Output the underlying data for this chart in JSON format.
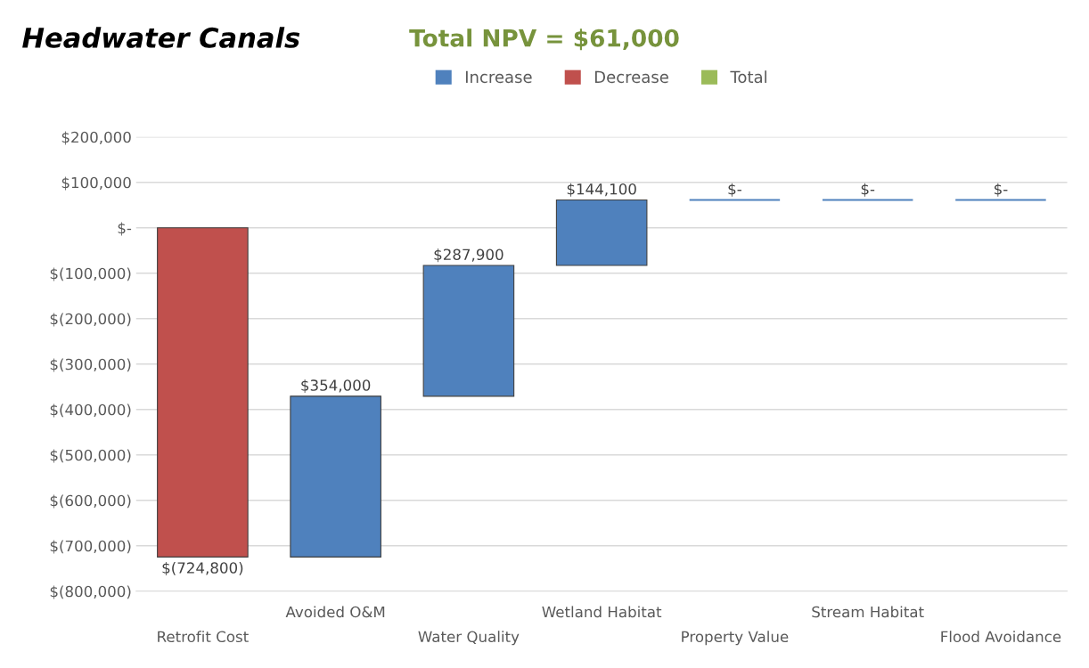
{
  "chart_data": {
    "type": "bar",
    "title": "Headwater Canals",
    "subtitle": "Total NPV = $61,000",
    "categories": [
      "Retrofit Cost",
      "Avoided O&M",
      "Water Quality",
      "Wetland Habitat",
      "Property Value",
      "Stream Habitat",
      "Flood Avoidance"
    ],
    "series": [
      {
        "name": "Increase",
        "color": "#4f81bd",
        "values": [
          null,
          354000,
          287900,
          144100,
          0,
          0,
          0
        ],
        "base": [
          null,
          -724800,
          -370800,
          -82900,
          61200,
          61200,
          61200
        ],
        "value_labels": [
          null,
          "$354,000",
          "$287,900",
          "$144,100",
          "$-",
          "$-",
          "$-"
        ]
      },
      {
        "name": "Decrease",
        "color": "#c0504d",
        "values": [
          -724800,
          null,
          null,
          null,
          null,
          null,
          null
        ],
        "base": [
          0,
          null,
          null,
          null,
          null,
          null,
          null
        ],
        "value_labels": [
          "$(724,800)",
          null,
          null,
          null,
          null,
          null,
          null
        ]
      },
      {
        "name": "Total",
        "color": "#9bbb59",
        "values": [
          null,
          null,
          null,
          null,
          null,
          null,
          null
        ]
      }
    ],
    "ylim": [
      -800000,
      200000
    ],
    "yticks": [
      {
        "value": 200000,
        "label": "$200,000"
      },
      {
        "value": 100000,
        "label": "$100,000"
      },
      {
        "value": 0,
        "label": "$-"
      },
      {
        "value": -100000,
        "label": "$(100,000)"
      },
      {
        "value": -200000,
        "label": "$(200,000)"
      },
      {
        "value": -300000,
        "label": "$(300,000)"
      },
      {
        "value": -400000,
        "label": "$(400,000)"
      },
      {
        "value": -500000,
        "label": "$(500,000)"
      },
      {
        "value": -600000,
        "label": "$(600,000)"
      },
      {
        "value": -700000,
        "label": "$(700,000)"
      },
      {
        "value": -800000,
        "label": "$(800,000)"
      }
    ],
    "grid": "y",
    "legend": "top"
  }
}
